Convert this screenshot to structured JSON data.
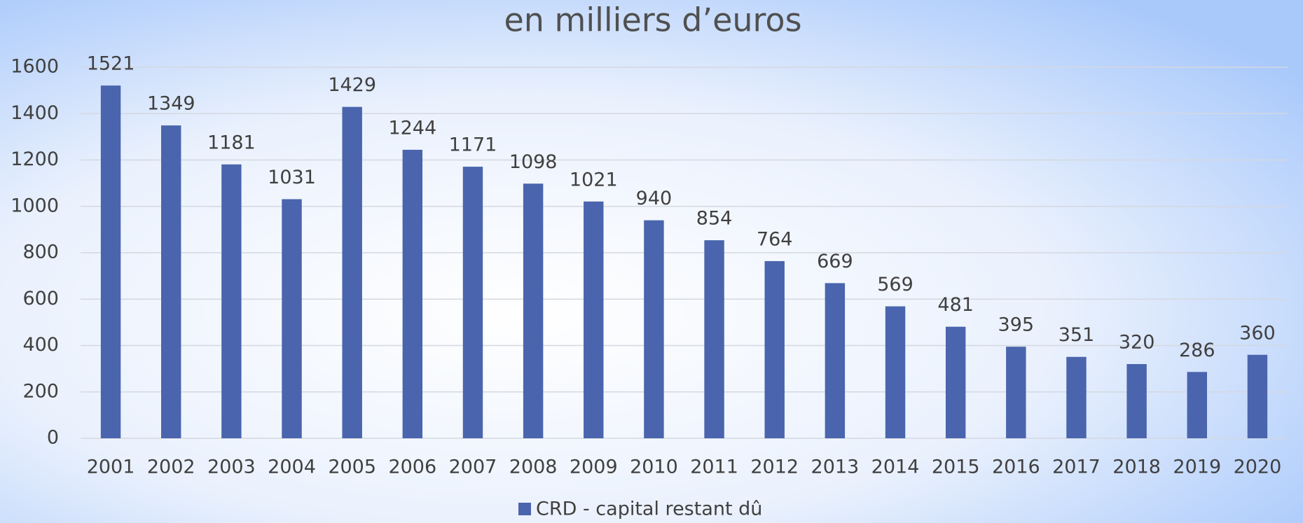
{
  "chart_data": {
    "type": "bar",
    "title": "en milliers d’euros",
    "categories": [
      "2001",
      "2002",
      "2003",
      "2004",
      "2005",
      "2006",
      "2007",
      "2008",
      "2009",
      "2010",
      "2011",
      "2012",
      "2013",
      "2014",
      "2015",
      "2016",
      "2017",
      "2018",
      "2019",
      "2020"
    ],
    "series": [
      {
        "name": "CRD - capital restant dû",
        "color": "#4a65ad",
        "values": [
          1521,
          1349,
          1181,
          1031,
          1429,
          1244,
          1171,
          1098,
          1021,
          940,
          854,
          764,
          669,
          569,
          481,
          395,
          351,
          320,
          286,
          360
        ]
      }
    ],
    "ylim": [
      0,
      1600
    ],
    "yticks": [
      0,
      200,
      400,
      600,
      800,
      1000,
      1200,
      1400,
      1600
    ],
    "grid": true,
    "legend": "bottom"
  }
}
